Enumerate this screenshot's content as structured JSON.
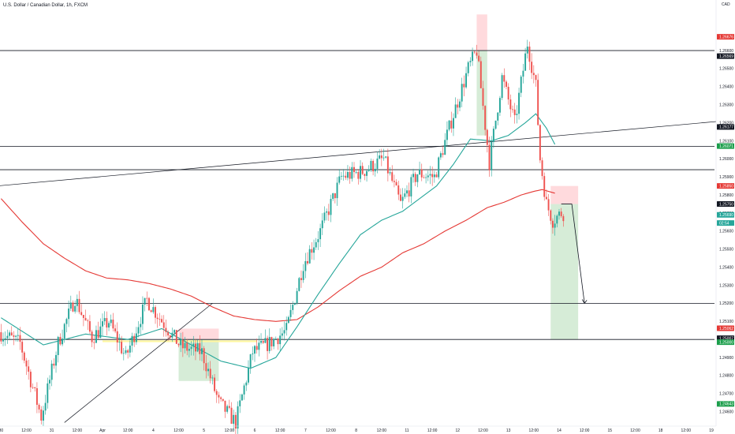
{
  "header": {
    "symbol_title": "U.S. Dollar / Canadian Dollar, 1h, FXCM",
    "currency": "CAD"
  },
  "colors": {
    "up": "#26a69a",
    "down": "#ef5350",
    "ema_fast": "#26a69a",
    "ema_slow": "#e53935",
    "target_zone": "#c8e6c9",
    "stop_zone": "#ffcdd2",
    "highlight_zone": "#fff59d",
    "level_line": "#131722"
  },
  "chart_data": {
    "type": "candlestick",
    "title": "",
    "xlabel": "",
    "ylabel": "",
    "ylim": [
      1.2452,
      1.2688
    ],
    "grid": false,
    "y_ticks": [
      1.246,
      1.247,
      1.248,
      1.249,
      1.25,
      1.251,
      1.252,
      1.253,
      1.254,
      1.255,
      1.256,
      1.257,
      1.258,
      1.259,
      1.26,
      1.261,
      1.262,
      1.263,
      1.264,
      1.265,
      1.266
    ],
    "y_tick_labels": [
      "1.24600",
      "1.24700",
      "1.24800",
      "1.24900",
      "1.25000",
      "1.25100",
      "1.25200",
      "1.25300",
      "1.25400",
      "1.25500",
      "1.25600",
      "1.25700",
      "1.25800",
      "1.25900",
      "1.26000",
      "1.26100",
      "1.26200",
      "1.26300",
      "1.26400",
      "1.26500",
      "1.26600"
    ],
    "x_ticks": [
      {
        "label": "30",
        "i": 0
      },
      {
        "label": "12:00",
        "i": 12
      },
      {
        "label": "31",
        "i": 24
      },
      {
        "label": "12:00",
        "i": 36
      },
      {
        "label": "Apr",
        "i": 48
      },
      {
        "label": "12:00",
        "i": 60
      },
      {
        "label": "4",
        "i": 72
      },
      {
        "label": "12:00",
        "i": 84
      },
      {
        "label": "5",
        "i": 96
      },
      {
        "label": "12:00",
        "i": 108
      },
      {
        "label": "6",
        "i": 120
      },
      {
        "label": "12:00",
        "i": 132
      },
      {
        "label": "7",
        "i": 144
      },
      {
        "label": "12:00",
        "i": 156
      },
      {
        "label": "8",
        "i": 168
      },
      {
        "label": "12:00",
        "i": 180
      },
      {
        "label": "11",
        "i": 192
      },
      {
        "label": "12:00",
        "i": 204
      },
      {
        "label": "12",
        "i": 216
      },
      {
        "label": "12:00",
        "i": 228
      },
      {
        "label": "13",
        "i": 240
      },
      {
        "label": "12:00",
        "i": 252
      },
      {
        "label": "14",
        "i": 264
      },
      {
        "label": "12:00",
        "i": 276
      },
      {
        "label": "15",
        "i": 288
      },
      {
        "label": "12:00",
        "i": 300
      },
      {
        "label": "18",
        "i": 312
      },
      {
        "label": "12:00",
        "i": 324
      },
      {
        "label": "19",
        "i": 336
      }
    ],
    "price_tags": [
      {
        "label": "1.26676",
        "value": 1.26676,
        "color": "#e53935"
      },
      {
        "label": "1.26569",
        "value": 1.26569,
        "color": "#131722"
      },
      {
        "label": "1.26177",
        "value": 1.26177,
        "color": "#131722"
      },
      {
        "label": "1.26071",
        "value": 1.26071,
        "color": "#1b9e4b"
      },
      {
        "label": "1.25850",
        "value": 1.2585,
        "color": "#e53935"
      },
      {
        "label": "1.25750",
        "value": 1.2575,
        "color": "#131722"
      },
      {
        "label": "1.25690",
        "value": 1.2569,
        "color": "#26a69a"
      },
      {
        "label": "02:54",
        "value": 1.25645,
        "color": "#26a69a"
      },
      {
        "label": "1.25062",
        "value": 1.25062,
        "color": "#e53935"
      },
      {
        "label": "1.25007",
        "value": 1.25007,
        "color": "#131722"
      },
      {
        "label": "1.25000",
        "value": 1.24985,
        "color": "#1b9e4b"
      },
      {
        "label": "1.24643",
        "value": 1.24643,
        "color": "#1b9e4b"
      }
    ],
    "horizontal_levels": [
      1.266,
      1.2607,
      1.2594,
      1.252,
      1.25
    ],
    "trendlines": [
      {
        "from": [
          -2,
          1.2585
        ],
        "to": [
          351,
          1.2622
        ]
      },
      {
        "from": [
          30,
          1.2454
        ],
        "to": [
          100,
          1.252
        ]
      }
    ],
    "zones": [
      {
        "kind": "target",
        "x0": 84,
        "x1": 103,
        "y0": 1.25,
        "y1": 1.2477
      },
      {
        "kind": "stop",
        "x0": 84,
        "x1": 103,
        "y0": 1.25,
        "y1": 1.2506
      },
      {
        "kind": "highlight",
        "x0": 48,
        "x1": 121,
        "y0": 1.24995,
        "y1": 1.24985
      },
      {
        "kind": "stop",
        "x0": 225,
        "x1": 230,
        "y0": 1.266,
        "y1": 1.268
      },
      {
        "kind": "target",
        "x0": 225,
        "x1": 230,
        "y0": 1.266,
        "y1": 1.2613
      },
      {
        "kind": "target",
        "x0": 260,
        "x1": 273,
        "y0": 1.2575,
        "y1": 1.25
      },
      {
        "kind": "stop",
        "x0": 260,
        "x1": 273,
        "y0": 1.2575,
        "y1": 1.2585
      }
    ],
    "projection": {
      "from": [
        265,
        1.2575
      ],
      "via": [
        270,
        1.2575
      ],
      "to": [
        276,
        1.252
      ]
    },
    "anchors_price": [
      [
        0,
        1.2504
      ],
      [
        10,
        1.2498
      ],
      [
        20,
        1.2457
      ],
      [
        28,
        1.2498
      ],
      [
        36,
        1.2523
      ],
      [
        44,
        1.2501
      ],
      [
        52,
        1.251
      ],
      [
        60,
        1.249
      ],
      [
        70,
        1.2522
      ],
      [
        76,
        1.2512
      ],
      [
        86,
        1.2496
      ],
      [
        96,
        1.2493
      ],
      [
        104,
        1.2465
      ],
      [
        112,
        1.2454
      ],
      [
        120,
        1.2493
      ],
      [
        128,
        1.2498
      ],
      [
        136,
        1.2505
      ],
      [
        144,
        1.2542
      ],
      [
        152,
        1.256
      ],
      [
        162,
        1.259
      ],
      [
        172,
        1.2593
      ],
      [
        182,
        1.26
      ],
      [
        190,
        1.2575
      ],
      [
        198,
        1.2592
      ],
      [
        206,
        1.259
      ],
      [
        214,
        1.2621
      ],
      [
        222,
        1.265
      ],
      [
        226,
        1.266
      ],
      [
        232,
        1.2598
      ],
      [
        238,
        1.2645
      ],
      [
        244,
        1.262
      ],
      [
        250,
        1.2664
      ],
      [
        254,
        1.264
      ],
      [
        256,
        1.26
      ],
      [
        259,
        1.2575
      ],
      [
        262,
        1.2566
      ],
      [
        266,
        1.257
      ]
    ],
    "ema_fast": [
      [
        0,
        1.2512
      ],
      [
        20,
        1.2497
      ],
      [
        40,
        1.2503
      ],
      [
        60,
        1.25
      ],
      [
        76,
        1.2506
      ],
      [
        90,
        1.2497
      ],
      [
        104,
        1.2488
      ],
      [
        118,
        1.2484
      ],
      [
        130,
        1.249
      ],
      [
        140,
        1.2507
      ],
      [
        150,
        1.2525
      ],
      [
        160,
        1.2542
      ],
      [
        170,
        1.2558
      ],
      [
        180,
        1.2566
      ],
      [
        190,
        1.2571
      ],
      [
        198,
        1.2578
      ],
      [
        206,
        1.2585
      ],
      [
        214,
        1.2597
      ],
      [
        222,
        1.2611
      ],
      [
        232,
        1.261
      ],
      [
        240,
        1.2613
      ],
      [
        248,
        1.262
      ],
      [
        253,
        1.2625
      ],
      [
        258,
        1.2617
      ],
      [
        262,
        1.2608
      ]
    ],
    "ema_slow": [
      [
        0,
        1.2578
      ],
      [
        10,
        1.2565
      ],
      [
        20,
        1.2553
      ],
      [
        30,
        1.2545
      ],
      [
        40,
        1.2538
      ],
      [
        50,
        1.2534
      ],
      [
        60,
        1.2533
      ],
      [
        70,
        1.2531
      ],
      [
        80,
        1.2528
      ],
      [
        90,
        1.2524
      ],
      [
        100,
        1.2518
      ],
      [
        110,
        1.2513
      ],
      [
        120,
        1.2511
      ],
      [
        130,
        1.251
      ],
      [
        140,
        1.2511
      ],
      [
        150,
        1.2518
      ],
      [
        160,
        1.2527
      ],
      [
        170,
        1.2535
      ],
      [
        180,
        1.254
      ],
      [
        190,
        1.2548
      ],
      [
        200,
        1.2553
      ],
      [
        210,
        1.256
      ],
      [
        220,
        1.2566
      ],
      [
        230,
        1.2573
      ],
      [
        238,
        1.2576
      ],
      [
        246,
        1.258
      ],
      [
        252,
        1.2582
      ],
      [
        256,
        1.2583
      ],
      [
        262,
        1.2581
      ]
    ]
  }
}
